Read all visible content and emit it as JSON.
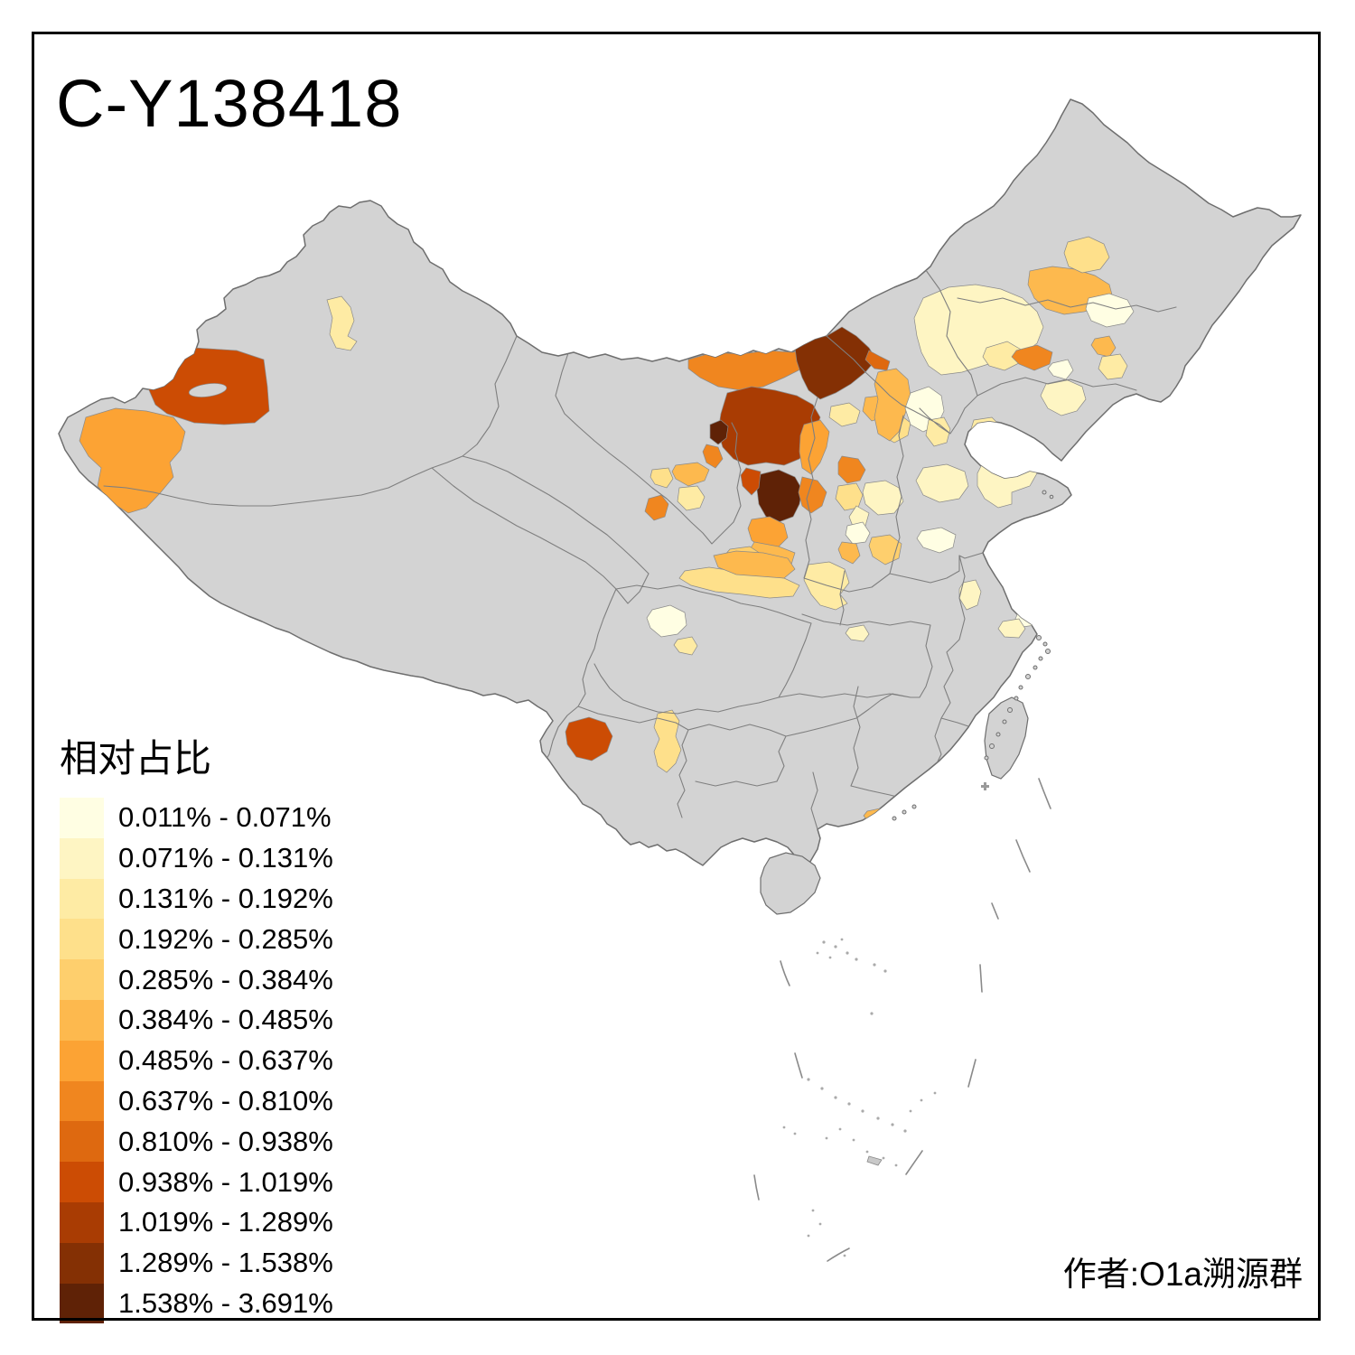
{
  "title": "C-Y138418",
  "attribution": "作者:O1a溯源群",
  "legend": {
    "title": "相对占比",
    "classes": [
      {
        "label": "0.011% - 0.071%",
        "color": "#FFFEE3"
      },
      {
        "label": "0.071% - 0.131%",
        "color": "#FEF5C3"
      },
      {
        "label": "0.131% - 0.192%",
        "color": "#FEEBA4"
      },
      {
        "label": "0.192% - 0.285%",
        "color": "#FEE08B"
      },
      {
        "label": "0.285% - 0.384%",
        "color": "#FECF6D"
      },
      {
        "label": "0.384% - 0.485%",
        "color": "#FDB94E"
      },
      {
        "label": "0.485% - 0.637%",
        "color": "#FCA334"
      },
      {
        "label": "0.637% - 0.810%",
        "color": "#F0861F"
      },
      {
        "label": "0.810% - 0.938%",
        "color": "#DE6910"
      },
      {
        "label": "0.938% - 1.019%",
        "color": "#CC4C04"
      },
      {
        "label": "1.019% - 1.289%",
        "color": "#A93C03"
      },
      {
        "label": "1.289% - 1.538%",
        "color": "#843004"
      },
      {
        "label": "1.538% - 3.691%",
        "color": "#5F2206"
      }
    ]
  },
  "map": {
    "land_color": "#D3D3D3",
    "province_border_color": "#7F7F7F",
    "country_outline_color": "#6E6E6E",
    "sea_color": "#FFFFFF",
    "frame_color": "#000000",
    "regions": [
      {
        "class": 10
      },
      {
        "class": 7
      },
      {
        "class": 3
      },
      {
        "class": 8
      },
      {
        "class": 12
      },
      {
        "class": 9
      },
      {
        "class": 11
      },
      {
        "class": 13
      },
      {
        "class": 8
      },
      {
        "class": 13
      },
      {
        "class": 10
      },
      {
        "class": 9
      },
      {
        "class": 7
      },
      {
        "class": 8
      },
      {
        "class": 8
      },
      {
        "class": 6
      },
      {
        "class": 3
      },
      {
        "class": 4
      },
      {
        "class": 4
      },
      {
        "class": 2
      },
      {
        "class": 2
      },
      {
        "class": 1
      },
      {
        "class": 6
      },
      {
        "class": 5
      },
      {
        "class": 7
      },
      {
        "class": 6
      },
      {
        "class": 5
      },
      {
        "class": 4
      },
      {
        "class": 3
      },
      {
        "class": 6
      },
      {
        "class": 4
      },
      {
        "class": 3
      },
      {
        "class": 8
      },
      {
        "class": 2
      },
      {
        "class": 3
      },
      {
        "class": 6
      },
      {
        "class": 4
      },
      {
        "class": 1
      },
      {
        "class": 8
      },
      {
        "class": 6
      },
      {
        "class": 3
      },
      {
        "class": 6
      },
      {
        "class": 1
      },
      {
        "class": 3
      },
      {
        "class": 2
      },
      {
        "class": 1
      },
      {
        "class": 3
      },
      {
        "class": 2
      },
      {
        "class": 2
      },
      {
        "class": 1
      },
      {
        "class": 2
      },
      {
        "class": 1
      },
      {
        "class": 2
      },
      {
        "class": 2
      },
      {
        "class": 1
      },
      {
        "class": 3
      },
      {
        "class": 6
      },
      {
        "class": 4
      },
      {
        "class": 10
      },
      {
        "class": 6
      }
    ]
  },
  "chart_data": {
    "type": "choropleth",
    "title": "C-Y138418",
    "legend_title": "相对占比",
    "class_breaks": [
      "0.011%",
      "0.071%",
      "0.131%",
      "0.192%",
      "0.285%",
      "0.384%",
      "0.485%",
      "0.637%",
      "0.810%",
      "0.938%",
      "1.019%",
      "1.289%",
      "1.538%",
      "3.691%"
    ],
    "num_classes": 13,
    "palette": [
      "#FFFEE3",
      "#FEF5C3",
      "#FEEBA4",
      "#FEE08B",
      "#FECF6D",
      "#FDB94E",
      "#FCA334",
      "#F0861F",
      "#DE6910",
      "#CC4C04",
      "#A93C03",
      "#843004",
      "#5F2206"
    ],
    "no_data_color": "#D3D3D3",
    "legend_position": "bottom-left"
  }
}
